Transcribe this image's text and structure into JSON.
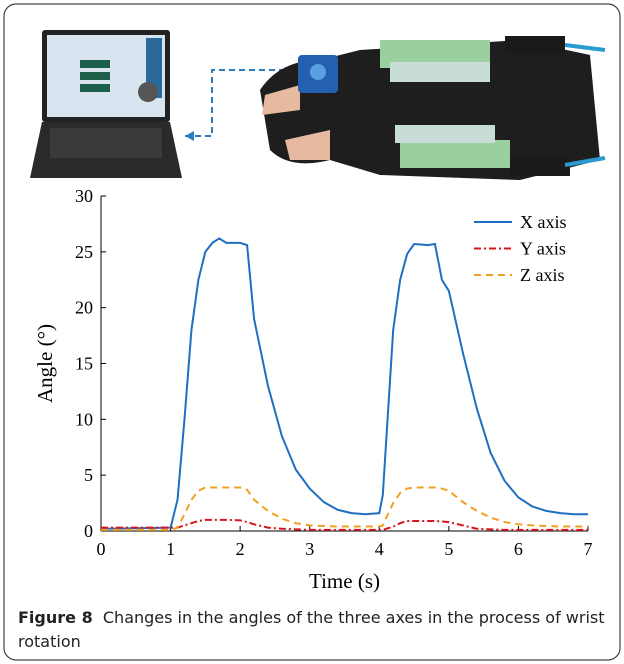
{
  "chart_data": {
    "type": "line",
    "x_label": "Time (s)",
    "y_label": "Angle (°)",
    "xlim": [
      0,
      7
    ],
    "xticks": [
      0,
      1,
      2,
      3,
      4,
      5,
      6,
      7
    ],
    "ylim": [
      0,
      30
    ],
    "yticks": [
      0,
      5,
      10,
      15,
      20,
      25,
      30
    ],
    "legend": "upper right",
    "x": [
      0,
      1,
      1.1,
      1.2,
      1.3,
      1.4,
      1.5,
      1.6,
      1.7,
      1.8,
      2,
      2.1,
      2.2,
      2.4,
      2.6,
      2.8,
      3,
      3.2,
      3.4,
      3.6,
      3.8,
      4,
      4.05,
      4.2,
      4.3,
      4.4,
      4.5,
      4.7,
      4.8,
      4.9,
      5,
      5.2,
      5.4,
      5.6,
      5.8,
      6,
      6.2,
      6.4,
      6.6,
      6.8,
      7
    ],
    "series": [
      {
        "name": "X axis",
        "color": "#1f6fc0",
        "dash": "solid",
        "values": [
          0.2,
          0.3,
          2.8,
          10,
          18,
          22.5,
          25,
          25.8,
          26.2,
          25.8,
          25.8,
          25.6,
          19,
          13,
          8.5,
          5.5,
          3.8,
          2.6,
          1.9,
          1.6,
          1.5,
          1.6,
          3.2,
          18,
          22.5,
          24.8,
          25.7,
          25.6,
          25.7,
          22.5,
          21.5,
          16,
          11,
          7,
          4.5,
          3,
          2.2,
          1.8,
          1.6,
          1.5,
          1.5
        ]
      },
      {
        "name": "Y axis",
        "color": "#d8141c",
        "dash": "dashdot",
        "values": [
          0.3,
          0.3,
          0.3,
          0.5,
          0.7,
          0.9,
          1.0,
          1.0,
          1.0,
          1.0,
          0.95,
          0.8,
          0.6,
          0.3,
          0.2,
          0.15,
          0.1,
          0.1,
          0.1,
          0.1,
          0.1,
          0.1,
          0.1,
          0.4,
          0.7,
          0.9,
          0.9,
          0.9,
          0.9,
          0.85,
          0.8,
          0.5,
          0.2,
          0.15,
          0.1,
          0.1,
          0.1,
          0.1,
          0.1,
          0.1,
          0.1
        ]
      },
      {
        "name": "Z axis",
        "color": "#f0a020",
        "dash": "dashed",
        "values": [
          0.1,
          0.1,
          0.3,
          1.5,
          2.8,
          3.6,
          3.9,
          3.9,
          3.9,
          3.9,
          3.9,
          3.7,
          2.8,
          1.8,
          1.1,
          0.7,
          0.5,
          0.45,
          0.4,
          0.4,
          0.4,
          0.4,
          0.5,
          2.5,
          3.4,
          3.8,
          3.9,
          3.9,
          3.9,
          3.8,
          3.6,
          2.6,
          1.8,
          1.2,
          0.8,
          0.6,
          0.5,
          0.45,
          0.4,
          0.4,
          0.4
        ]
      }
    ]
  },
  "caption": {
    "label": "Figure 8",
    "text": "Changes in the angles of the three axes in the process of wrist rotation"
  }
}
